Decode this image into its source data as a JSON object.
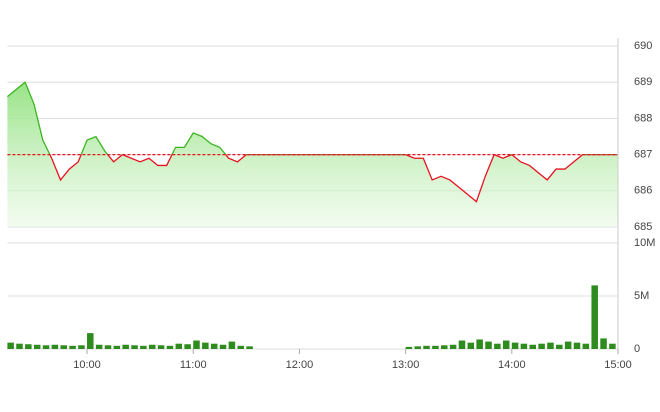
{
  "chart_data": [
    {
      "type": "area",
      "x": [
        "09:15",
        "09:20",
        "09:25",
        "09:30",
        "09:35",
        "09:40",
        "09:45",
        "09:50",
        "09:55",
        "10:00",
        "10:05",
        "10:10",
        "10:15",
        "10:20",
        "10:25",
        "10:30",
        "10:35",
        "10:40",
        "10:45",
        "10:50",
        "10:55",
        "11:00",
        "11:05",
        "11:10",
        "11:15",
        "11:20",
        "11:25",
        "11:30",
        "13:00",
        "13:05",
        "13:10",
        "13:15",
        "13:20",
        "13:25",
        "13:30",
        "13:35",
        "13:40",
        "13:45",
        "13:50",
        "13:55",
        "14:00",
        "14:05",
        "14:10",
        "14:15",
        "14:20",
        "14:25",
        "14:30",
        "14:35",
        "14:40",
        "14:45",
        "15:00"
      ],
      "values": [
        688.6,
        688.8,
        689,
        688.4,
        687.4,
        686.9,
        686.3,
        686.6,
        686.8,
        687.4,
        687.5,
        687.1,
        686.8,
        687,
        686.9,
        686.8,
        686.9,
        686.7,
        686.7,
        687.2,
        687.2,
        687.6,
        687.5,
        687.3,
        687.2,
        686.9,
        686.8,
        687,
        687,
        686.9,
        686.9,
        686.3,
        686.4,
        686.3,
        686.1,
        685.9,
        685.7,
        686.4,
        687,
        686.9,
        687,
        686.8,
        686.7,
        686.5,
        686.3,
        686.6,
        686.6,
        686.8,
        687,
        687,
        687
      ],
      "reference": 687,
      "color_above": "#3cb521",
      "color_below": "#e8121f",
      "xlim": [
        "09:15",
        "15:00"
      ],
      "ylim": [
        685,
        690
      ],
      "yticks": [
        685,
        686,
        687,
        688,
        689,
        690
      ],
      "grid": true
    },
    {
      "type": "bar",
      "x": [
        "09:15",
        "09:20",
        "09:25",
        "09:30",
        "09:35",
        "09:40",
        "09:45",
        "09:50",
        "09:55",
        "10:00",
        "10:05",
        "10:10",
        "10:15",
        "10:20",
        "10:25",
        "10:30",
        "10:35",
        "10:40",
        "10:45",
        "10:50",
        "10:55",
        "11:00",
        "11:05",
        "11:10",
        "11:15",
        "11:20",
        "11:25",
        "11:30",
        "13:00",
        "13:05",
        "13:10",
        "13:15",
        "13:20",
        "13:25",
        "13:30",
        "13:35",
        "13:40",
        "13:45",
        "13:50",
        "13:55",
        "14:00",
        "14:05",
        "14:10",
        "14:15",
        "14:20",
        "14:25",
        "14:30",
        "14:35",
        "14:40",
        "14:45",
        "14:50",
        "14:55"
      ],
      "values": [
        600000,
        500000,
        450000,
        400000,
        350000,
        400000,
        350000,
        300000,
        350000,
        1500000,
        400000,
        350000,
        300000,
        400000,
        350000,
        300000,
        400000,
        350000,
        300000,
        500000,
        450000,
        800000,
        600000,
        500000,
        400000,
        700000,
        300000,
        250000,
        200000,
        250000,
        300000,
        300000,
        350000,
        400000,
        800000,
        600000,
        900000,
        700000,
        500000,
        800000,
        600000,
        500000,
        400000,
        500000,
        600000,
        400000,
        700000,
        600000,
        500000,
        6000000,
        1000000,
        500000
      ],
      "color": "#2e8b1e",
      "xlim": [
        "09:15",
        "15:00"
      ],
      "xticks": [
        "10:00",
        "11:00",
        "12:00",
        "13:00",
        "14:00",
        "15:00"
      ],
      "ylim": [
        0,
        10000000
      ],
      "yticks": [
        {
          "value": 0,
          "label": "0"
        },
        {
          "value": 5000000,
          "label": "5M"
        },
        {
          "value": 10000000,
          "label": "10M"
        }
      ],
      "grid": true
    }
  ]
}
